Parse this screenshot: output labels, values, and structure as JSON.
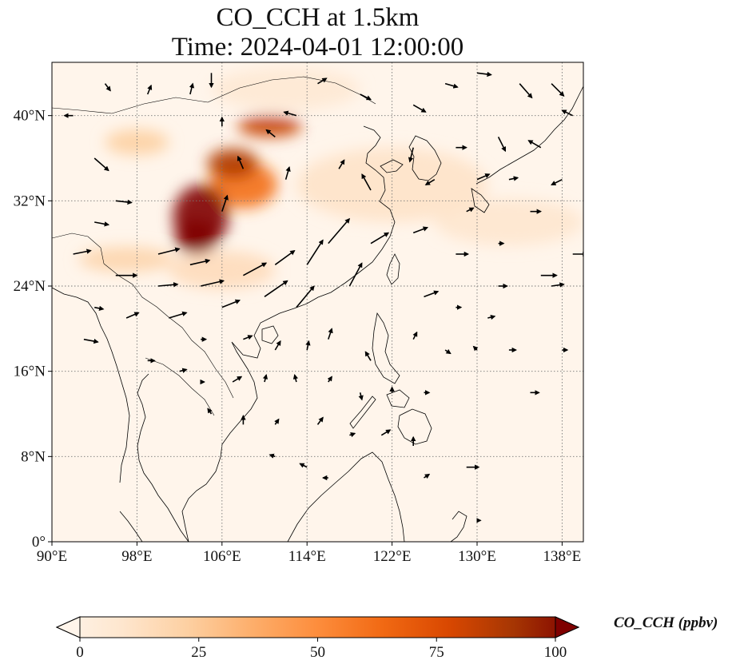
{
  "title": {
    "line1": "CO_CCH at 1.5km",
    "line2": "Time: 2024-04-01 12:00:00"
  },
  "map": {
    "lon_range": [
      90,
      140
    ],
    "lat_range": [
      0,
      45
    ],
    "lon_ticks": [
      {
        "value": 90,
        "label": "90°E"
      },
      {
        "value": 98,
        "label": "98°E"
      },
      {
        "value": 106,
        "label": "106°E"
      },
      {
        "value": 114,
        "label": "114°E"
      },
      {
        "value": 122,
        "label": "122°E"
      },
      {
        "value": 130,
        "label": "130°E"
      },
      {
        "value": 138,
        "label": "138°E"
      }
    ],
    "lat_ticks": [
      {
        "value": 0,
        "label": "0°"
      },
      {
        "value": 8,
        "label": "8°N"
      },
      {
        "value": 16,
        "label": "16°N"
      },
      {
        "value": 24,
        "label": "24°N"
      },
      {
        "value": 32,
        "label": "32°N"
      },
      {
        "value": 40,
        "label": "40°N"
      }
    ],
    "gridlines": true,
    "plumes": [
      {
        "name": "sichuan-core",
        "lon": 104.0,
        "lat": 30.5,
        "rx": 2.6,
        "ry": 3.0,
        "value": 100
      },
      {
        "name": "sichuan-core-south",
        "lon": 103.6,
        "lat": 28.6,
        "rx": 2.0,
        "ry": 1.6,
        "value": 100
      },
      {
        "name": "band-north-1",
        "lon": 107.0,
        "lat": 35.5,
        "rx": 2.4,
        "ry": 1.4,
        "value": 85
      },
      {
        "name": "band-north-2",
        "lon": 110.5,
        "lat": 39.0,
        "rx": 3.0,
        "ry": 1.0,
        "value": 80
      },
      {
        "name": "band-mid",
        "lon": 108.0,
        "lat": 33.5,
        "rx": 3.2,
        "ry": 2.2,
        "value": 60
      },
      {
        "name": "west-fringe",
        "lon": 98.0,
        "lat": 37.5,
        "rx": 3.0,
        "ry": 1.2,
        "value": 25
      },
      {
        "name": "south-fringe",
        "lon": 97.0,
        "lat": 26.5,
        "rx": 4.5,
        "ry": 1.2,
        "value": 22
      },
      {
        "name": "east-haze",
        "lon": 122.0,
        "lat": 33.5,
        "rx": 9.0,
        "ry": 3.5,
        "value": 14
      },
      {
        "name": "pacific-haze",
        "lon": 133.0,
        "lat": 30.0,
        "rx": 7.0,
        "ry": 2.2,
        "value": 12
      },
      {
        "name": "north-haze",
        "lon": 112.0,
        "lat": 42.5,
        "rx": 7.0,
        "ry": 2.0,
        "value": 10
      },
      {
        "name": "yunnan-haze",
        "lon": 106.0,
        "lat": 25.5,
        "rx": 5.0,
        "ry": 1.8,
        "value": 18
      }
    ],
    "wind_vectors": [
      {
        "lon": 92,
        "lat": 40,
        "u": -1.0,
        "v": 0.0
      },
      {
        "lon": 94,
        "lat": 36,
        "u": 1.6,
        "v": -1.4
      },
      {
        "lon": 96,
        "lat": 32,
        "u": 1.8,
        "v": -0.2
      },
      {
        "lon": 94,
        "lat": 30,
        "u": 1.6,
        "v": -0.3
      },
      {
        "lon": 92,
        "lat": 27,
        "u": 2.0,
        "v": 0.4
      },
      {
        "lon": 96,
        "lat": 25,
        "u": 2.4,
        "v": 0.0
      },
      {
        "lon": 94,
        "lat": 22,
        "u": 1.0,
        "v": -0.2
      },
      {
        "lon": 93,
        "lat": 19,
        "u": 1.6,
        "v": -0.3
      },
      {
        "lon": 97,
        "lat": 21,
        "u": 1.4,
        "v": 0.6
      },
      {
        "lon": 100,
        "lat": 27,
        "u": 2.4,
        "v": 0.6
      },
      {
        "lon": 100,
        "lat": 24,
        "u": 2.2,
        "v": 0.2
      },
      {
        "lon": 101,
        "lat": 21,
        "u": 2.0,
        "v": 0.6
      },
      {
        "lon": 99,
        "lat": 17,
        "u": 0.8,
        "v": 0.0
      },
      {
        "lon": 103,
        "lat": 26,
        "u": 2.2,
        "v": 0.5
      },
      {
        "lon": 104,
        "lat": 24,
        "u": 2.6,
        "v": 0.6
      },
      {
        "lon": 106,
        "lat": 22,
        "u": 2.0,
        "v": 0.8
      },
      {
        "lon": 108,
        "lat": 25,
        "u": 2.6,
        "v": 1.4
      },
      {
        "lon": 110,
        "lat": 23,
        "u": 2.6,
        "v": 1.8
      },
      {
        "lon": 111,
        "lat": 26,
        "u": 2.2,
        "v": 1.6
      },
      {
        "lon": 113,
        "lat": 22,
        "u": 2.0,
        "v": 2.4
      },
      {
        "lon": 114,
        "lat": 26,
        "u": 1.8,
        "v": 2.8
      },
      {
        "lon": 116,
        "lat": 28,
        "u": 2.4,
        "v": 2.8
      },
      {
        "lon": 118,
        "lat": 24,
        "u": 1.4,
        "v": 2.6
      },
      {
        "lon": 120,
        "lat": 28,
        "u": 2.0,
        "v": 1.2
      },
      {
        "lon": 120,
        "lat": 33,
        "u": -1.0,
        "v": 1.8
      },
      {
        "lon": 117,
        "lat": 35,
        "u": 0.6,
        "v": 1.0
      },
      {
        "lon": 112,
        "lat": 34,
        "u": 0.4,
        "v": 1.4
      },
      {
        "lon": 106,
        "lat": 31,
        "u": 0.6,
        "v": 1.8
      },
      {
        "lon": 108,
        "lat": 35,
        "u": -0.6,
        "v": 1.4
      },
      {
        "lon": 111,
        "lat": 38,
        "u": -1.0,
        "v": 0.8
      },
      {
        "lon": 113,
        "lat": 40,
        "u": -1.4,
        "v": 0.4
      },
      {
        "lon": 106,
        "lat": 39,
        "u": 0.0,
        "v": 1.0
      },
      {
        "lon": 103,
        "lat": 42,
        "u": 0.3,
        "v": 1.2
      },
      {
        "lon": 99,
        "lat": 42,
        "u": 0.4,
        "v": 1.0
      },
      {
        "lon": 95,
        "lat": 43,
        "u": 0.6,
        "v": -0.8
      },
      {
        "lon": 105,
        "lat": 44,
        "u": 0.0,
        "v": -1.6
      },
      {
        "lon": 115,
        "lat": 43,
        "u": 1.0,
        "v": 0.6
      },
      {
        "lon": 119,
        "lat": 42,
        "u": 1.2,
        "v": -0.6
      },
      {
        "lon": 124,
        "lat": 41,
        "u": 1.4,
        "v": -0.8
      },
      {
        "lon": 127,
        "lat": 43,
        "u": 1.4,
        "v": -0.4
      },
      {
        "lon": 130,
        "lat": 44,
        "u": 1.6,
        "v": -0.2
      },
      {
        "lon": 134,
        "lat": 43,
        "u": 1.4,
        "v": -1.6
      },
      {
        "lon": 137,
        "lat": 43,
        "u": 1.4,
        "v": -1.4
      },
      {
        "lon": 132,
        "lat": 38,
        "u": 0.8,
        "v": -1.6
      },
      {
        "lon": 136,
        "lat": 37,
        "u": -1.4,
        "v": 0.8
      },
      {
        "lon": 139,
        "lat": 40,
        "u": -1.2,
        "v": 0.6
      },
      {
        "lon": 138,
        "lat": 34,
        "u": -1.2,
        "v": -0.6
      },
      {
        "lon": 128,
        "lat": 37,
        "u": 1.2,
        "v": 0.0
      },
      {
        "lon": 124,
        "lat": 37,
        "u": -0.4,
        "v": -1.6
      },
      {
        "lon": 126,
        "lat": 34,
        "u": -1.0,
        "v": -0.6
      },
      {
        "lon": 130,
        "lat": 34,
        "u": 1.4,
        "v": 0.6
      },
      {
        "lon": 133,
        "lat": 34,
        "u": 1.0,
        "v": 0.2
      },
      {
        "lon": 135,
        "lat": 31,
        "u": 1.2,
        "v": 0.0
      },
      {
        "lon": 129,
        "lat": 31,
        "u": 0.8,
        "v": 0.4
      },
      {
        "lon": 124,
        "lat": 29,
        "u": 1.6,
        "v": 0.6
      },
      {
        "lon": 128,
        "lat": 27,
        "u": 1.4,
        "v": 0.0
      },
      {
        "lon": 132,
        "lat": 28,
        "u": 0.6,
        "v": 0.0
      },
      {
        "lon": 136,
        "lat": 25,
        "u": 1.8,
        "v": 0.0
      },
      {
        "lon": 139,
        "lat": 27,
        "u": 1.6,
        "v": 0.0
      },
      {
        "lon": 132,
        "lat": 24,
        "u": 1.0,
        "v": 0.0
      },
      {
        "lon": 137,
        "lat": 24,
        "u": 1.4,
        "v": 0.2
      },
      {
        "lon": 125,
        "lat": 23,
        "u": 1.6,
        "v": 0.6
      },
      {
        "lon": 128,
        "lat": 22,
        "u": 0.6,
        "v": 0.0
      },
      {
        "lon": 131,
        "lat": 21,
        "u": 0.8,
        "v": 0.2
      },
      {
        "lon": 124,
        "lat": 19,
        "u": 0.4,
        "v": 0.8
      },
      {
        "lon": 127,
        "lat": 18,
        "u": 0.6,
        "v": -0.4
      },
      {
        "lon": 130,
        "lat": 18,
        "u": -0.4,
        "v": 0.4
      },
      {
        "lon": 133,
        "lat": 18,
        "u": 0.8,
        "v": 0.0
      },
      {
        "lon": 120,
        "lat": 17,
        "u": -0.6,
        "v": 1.0
      },
      {
        "lon": 116,
        "lat": 19,
        "u": 0.4,
        "v": 1.2
      },
      {
        "lon": 114,
        "lat": 18,
        "u": 0.2,
        "v": 1.0
      },
      {
        "lon": 111,
        "lat": 18,
        "u": 0.6,
        "v": 1.0
      },
      {
        "lon": 108,
        "lat": 19,
        "u": 1.0,
        "v": 0.4
      },
      {
        "lon": 104,
        "lat": 19,
        "u": 0.6,
        "v": 0.0
      },
      {
        "lon": 102,
        "lat": 16,
        "u": 0.8,
        "v": 0.2
      },
      {
        "lon": 104,
        "lat": 15,
        "u": 0.4,
        "v": 0.0
      },
      {
        "lon": 107,
        "lat": 15,
        "u": 1.0,
        "v": 0.6
      },
      {
        "lon": 110,
        "lat": 15,
        "u": 0.2,
        "v": 0.8
      },
      {
        "lon": 113,
        "lat": 15,
        "u": -0.2,
        "v": 0.8
      },
      {
        "lon": 116,
        "lat": 15,
        "u": 0.4,
        "v": 0.6
      },
      {
        "lon": 119,
        "lat": 14,
        "u": 0.2,
        "v": -0.8
      },
      {
        "lon": 122,
        "lat": 14,
        "u": 0.0,
        "v": 0.6
      },
      {
        "lon": 125,
        "lat": 14,
        "u": 0.6,
        "v": 0.0
      },
      {
        "lon": 105,
        "lat": 12,
        "u": -0.4,
        "v": 0.6
      },
      {
        "lon": 108,
        "lat": 11,
        "u": 0.0,
        "v": 1.0
      },
      {
        "lon": 111,
        "lat": 11,
        "u": 0.4,
        "v": 0.6
      },
      {
        "lon": 115,
        "lat": 11,
        "u": 0.6,
        "v": 0.8
      },
      {
        "lon": 118,
        "lat": 10,
        "u": 0.6,
        "v": 0.2
      },
      {
        "lon": 121,
        "lat": 10,
        "u": 1.0,
        "v": 0.6
      },
      {
        "lon": 124,
        "lat": 9,
        "u": 0.0,
        "v": 1.0
      },
      {
        "lon": 111,
        "lat": 8,
        "u": -0.6,
        "v": 0.2
      },
      {
        "lon": 114,
        "lat": 7,
        "u": -0.8,
        "v": 0.4
      },
      {
        "lon": 116,
        "lat": 6,
        "u": -0.6,
        "v": 0.0
      },
      {
        "lon": 125,
        "lat": 6,
        "u": 0.6,
        "v": 0.4
      },
      {
        "lon": 130,
        "lat": 2,
        "u": 0.4,
        "v": 0.0
      },
      {
        "lon": 129,
        "lat": 7,
        "u": 1.4,
        "v": 0.0
      },
      {
        "lon": 135,
        "lat": 14,
        "u": 1.0,
        "v": 0.0
      },
      {
        "lon": 138,
        "lat": 18,
        "u": 0.6,
        "v": 0.0
      }
    ]
  },
  "colorbar": {
    "ticks": [
      {
        "value": 0,
        "label": "0"
      },
      {
        "value": 25,
        "label": "25"
      },
      {
        "value": 50,
        "label": "50"
      },
      {
        "value": 75,
        "label": "75"
      },
      {
        "value": 100,
        "label": "100"
      }
    ],
    "range": [
      0,
      100
    ],
    "extend": "both",
    "label": "CO_CCH (ppbv)",
    "colormap": [
      "#fff5eb",
      "#fee6ce",
      "#fdd0a2",
      "#fdae6b",
      "#fd8d3c",
      "#f16913",
      "#d94801",
      "#a63603",
      "#7f0000"
    ]
  }
}
